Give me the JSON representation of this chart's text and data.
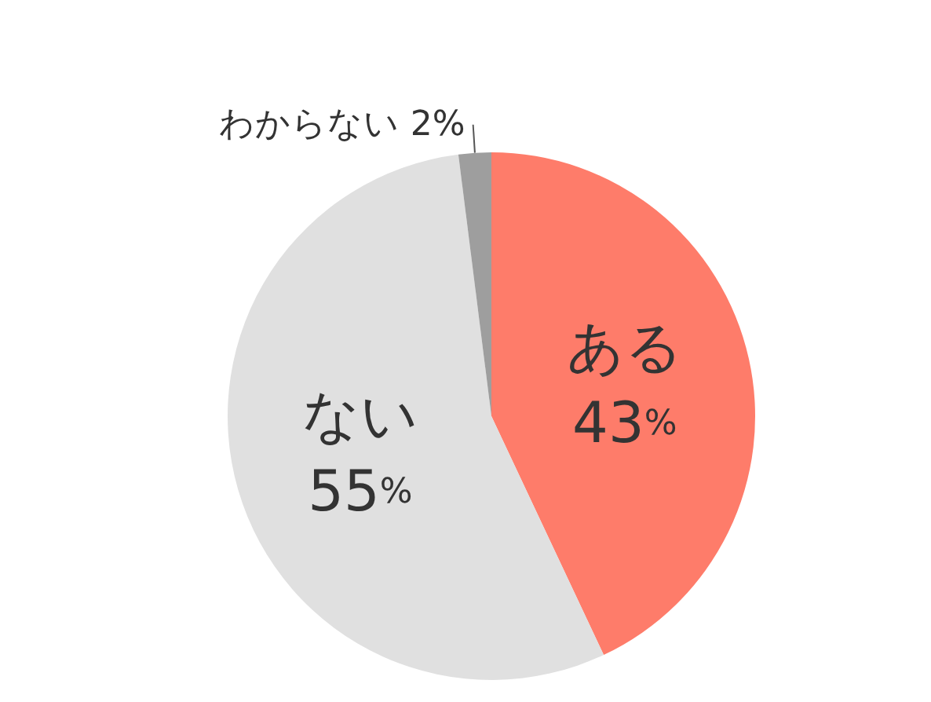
{
  "chart_data": {
    "type": "pie",
    "categories": [
      "ある",
      "ない",
      "わからない"
    ],
    "values": [
      43,
      55,
      2
    ],
    "colors": [
      "#fe7c6a",
      "#e0e0e0",
      "#9e9e9e"
    ],
    "value_labels": [
      "43%",
      "55%",
      "2%"
    ],
    "legend": false
  }
}
